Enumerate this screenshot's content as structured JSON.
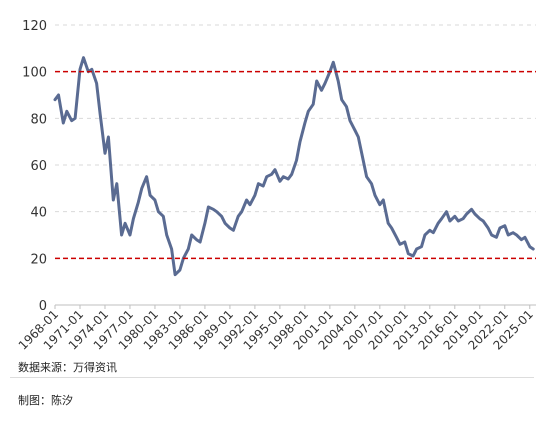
{
  "chart_data": {
    "type": "line",
    "title": "",
    "xlabel": "",
    "ylabel": "",
    "ylim": [
      0,
      120
    ],
    "y_ticks": [
      "0",
      "20",
      "40",
      "60",
      "80",
      "100",
      "120"
    ],
    "x_ticks": [
      "1968-01",
      "1971-01",
      "1974-01",
      "1977-01",
      "1980-01",
      "1983-01",
      "1986-01",
      "1989-01",
      "1992-01",
      "1995-01",
      "1998-01",
      "2001-01",
      "2004-01",
      "2007-01",
      "2010-01",
      "2013-01",
      "2016-01",
      "2019-01",
      "2022-01",
      "2025-01"
    ],
    "grid": true,
    "reference_lines": [
      100,
      20
    ],
    "series": [
      {
        "x": [
          "1968-01",
          "1968-06",
          "1969-01",
          "1969-06",
          "1970-01",
          "1970-06",
          "1971-01",
          "1971-06",
          "1972-01",
          "1972-06",
          "1973-01",
          "1973-06",
          "1974-01",
          "1974-06",
          "1975-01",
          "1975-06",
          "1976-01",
          "1976-06",
          "1977-01",
          "1977-06",
          "1978-01",
          "1978-06",
          "1979-01",
          "1979-06",
          "1980-01",
          "1980-06",
          "1981-01",
          "1981-06",
          "1982-01",
          "1982-06",
          "1983-01",
          "1983-06",
          "1984-01",
          "1984-06",
          "1985-01",
          "1985-06",
          "1986-01",
          "1986-06",
          "1987-01",
          "1987-06",
          "1988-01",
          "1988-06",
          "1989-01",
          "1989-06",
          "1990-01",
          "1990-06",
          "1991-01",
          "1991-06",
          "1992-01",
          "1992-06",
          "1993-01",
          "1993-06",
          "1994-01",
          "1994-06",
          "1995-01",
          "1995-06",
          "1996-01",
          "1996-06",
          "1997-01",
          "1997-06",
          "1998-01",
          "1998-06",
          "1999-01",
          "1999-06",
          "2000-01",
          "2000-06",
          "2001-01",
          "2001-06",
          "2002-01",
          "2002-06",
          "2003-01",
          "2003-06",
          "2004-01",
          "2004-06",
          "2005-01",
          "2005-06",
          "2006-01",
          "2006-06",
          "2007-01",
          "2007-06",
          "2008-01",
          "2008-06",
          "2009-01",
          "2009-06",
          "2010-01",
          "2010-06",
          "2011-01",
          "2011-06",
          "2012-01",
          "2012-06",
          "2013-01",
          "2013-06",
          "2014-01",
          "2014-06",
          "2015-01",
          "2015-06",
          "2016-01",
          "2016-06",
          "2017-01",
          "2017-06",
          "2018-01",
          "2018-06",
          "2019-01",
          "2019-06",
          "2020-01",
          "2020-06",
          "2021-01",
          "2021-06",
          "2022-01",
          "2022-06",
          "2023-01",
          "2023-06",
          "2024-01",
          "2024-06",
          "2025-01",
          "2025-06"
        ],
        "values": [
          88,
          90,
          78,
          83,
          79,
          80,
          101,
          106,
          100,
          101,
          95,
          82,
          65,
          72,
          45,
          52,
          30,
          35,
          30,
          37,
          44,
          50,
          55,
          47,
          45,
          40,
          38,
          30,
          24,
          13,
          15,
          20,
          24,
          30,
          28,
          27,
          35,
          42,
          41,
          40,
          38,
          35,
          33,
          32,
          38,
          40,
          45,
          43,
          47,
          52,
          51,
          55,
          56,
          58,
          53,
          55,
          54,
          56,
          62,
          70,
          78,
          83,
          86,
          96,
          92,
          95,
          100,
          104,
          96,
          88,
          85,
          79,
          75,
          72,
          62,
          55,
          52,
          47,
          43,
          45,
          35,
          33,
          29,
          26,
          27,
          22,
          21,
          24,
          25,
          30,
          32,
          31,
          35,
          37,
          40,
          36,
          38,
          36,
          37,
          39,
          41,
          39,
          37,
          36,
          33,
          30,
          29,
          33,
          34,
          30,
          31,
          30,
          28,
          29,
          25,
          24
        ]
      }
    ]
  },
  "footer": {
    "source": "数据来源：万得资讯",
    "author": "制图：陈汐"
  }
}
